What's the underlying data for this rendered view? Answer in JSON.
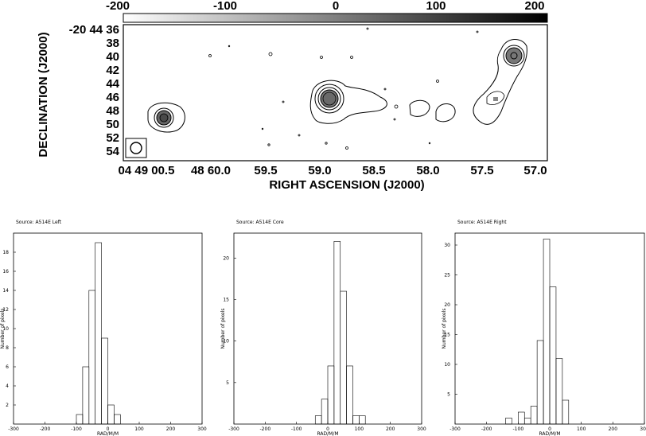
{
  "colorbar": {
    "ticks": [
      "-200",
      "-100",
      "0",
      "100",
      "200"
    ],
    "range": [
      -200,
      200
    ]
  },
  "map": {
    "xlabel": "RIGHT ASCENSION (J2000)",
    "ylabel": "DECLINATION (J2000)",
    "dec_first_label": "-20 44 36",
    "dec_ticks": [
      "38",
      "40",
      "42",
      "44",
      "46",
      "48",
      "50",
      "52",
      "54"
    ],
    "ra_ticks": [
      "04 49 00.5",
      "48 60.0",
      "59.5",
      "59.0",
      "58.5",
      "58.0",
      "57.5",
      "57.0"
    ]
  },
  "chart_data": [
    {
      "type": "bar",
      "title": "Source: A514E Left",
      "xlabel": "RAD/M/M",
      "ylabel": "Number of pixels",
      "xlim": [
        -300,
        300
      ],
      "ylim": [
        0,
        20
      ],
      "xticks": [
        "-300",
        "-200",
        "-100",
        "0",
        "100",
        "200",
        "300"
      ],
      "yticks": [
        "2",
        "4",
        "6",
        "8",
        "10",
        "12",
        "14",
        "16",
        "18"
      ],
      "bin_width": 20,
      "bin_centers": [
        -90,
        -70,
        -50,
        -30,
        -10,
        10,
        30
      ],
      "values": [
        1,
        6,
        14,
        19,
        9,
        2,
        1
      ]
    },
    {
      "type": "bar",
      "title": "Source: A514E Core",
      "xlabel": "RAD/M/M",
      "ylabel": "Number of pixels",
      "xlim": [
        -300,
        300
      ],
      "ylim": [
        0,
        23
      ],
      "xticks": [
        "-300",
        "-200",
        "-100",
        "0",
        "100",
        "200",
        "300"
      ],
      "yticks": [
        "5",
        "10",
        "15",
        "20"
      ],
      "bin_width": 20,
      "bin_centers": [
        -30,
        -10,
        10,
        30,
        50,
        70,
        90,
        110,
        130,
        150
      ],
      "values": [
        1,
        3,
        7,
        22,
        16,
        7,
        1,
        1,
        0,
        0
      ]
    },
    {
      "type": "bar",
      "title": "Source: A514E Right",
      "xlabel": "RAD/M/M",
      "ylabel": "Number of pixels",
      "xlim": [
        -300,
        300
      ],
      "ylim": [
        0,
        32
      ],
      "xticks": [
        "-300",
        "-200",
        "-100",
        "0",
        "100",
        "200",
        "300"
      ],
      "yticks": [
        "5",
        "10",
        "15",
        "20",
        "25",
        "30"
      ],
      "bin_width": 20,
      "bin_centers": [
        -130,
        -110,
        -90,
        -70,
        -50,
        -30,
        -10,
        10,
        30,
        50
      ],
      "values": [
        1,
        0,
        2,
        1,
        3,
        14,
        31,
        23,
        11,
        4
      ]
    }
  ]
}
